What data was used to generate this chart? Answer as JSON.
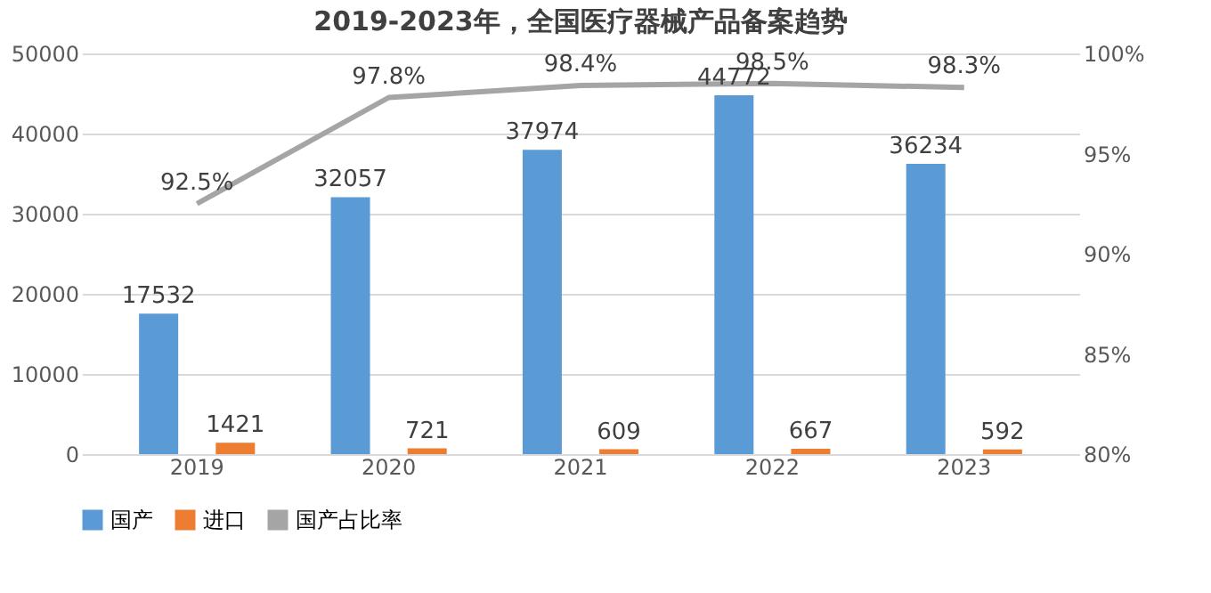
{
  "chart_data": {
    "type": "bar",
    "title": "2019-2023年，全国医疗器械产品备案趋势",
    "categories": [
      "2019",
      "2020",
      "2021",
      "2022",
      "2023"
    ],
    "series": [
      {
        "name": "国产",
        "color": "#5b9bd5",
        "values": [
          17532,
          32057,
          37974,
          44772,
          36234
        ]
      },
      {
        "name": "进口",
        "color": "#ed7d31",
        "values": [
          1421,
          721,
          609,
          667,
          592
        ]
      },
      {
        "name": "国产占比率",
        "type": "line",
        "axis": "y2",
        "color": "#a5a5a5",
        "values": [
          92.5,
          97.8,
          98.4,
          98.5,
          98.3
        ],
        "value_labels": [
          "92.5%",
          "97.8%",
          "98.4%",
          "98.5%",
          "98.3%"
        ]
      }
    ],
    "ylim": [
      0,
      50000
    ],
    "yticks": [
      0,
      10000,
      20000,
      30000,
      40000,
      50000
    ],
    "y2lim": [
      80,
      100
    ],
    "y2ticks": [
      {
        "value": 80,
        "label": "80%"
      },
      {
        "value": 85,
        "label": "85%"
      },
      {
        "value": 90,
        "label": "90%"
      },
      {
        "value": 95,
        "label": "95%"
      },
      {
        "value": 100,
        "label": "100%"
      }
    ],
    "data_labels": true,
    "grid": "y",
    "legend": "bottom",
    "marker": "none",
    "line_style": "solid"
  }
}
